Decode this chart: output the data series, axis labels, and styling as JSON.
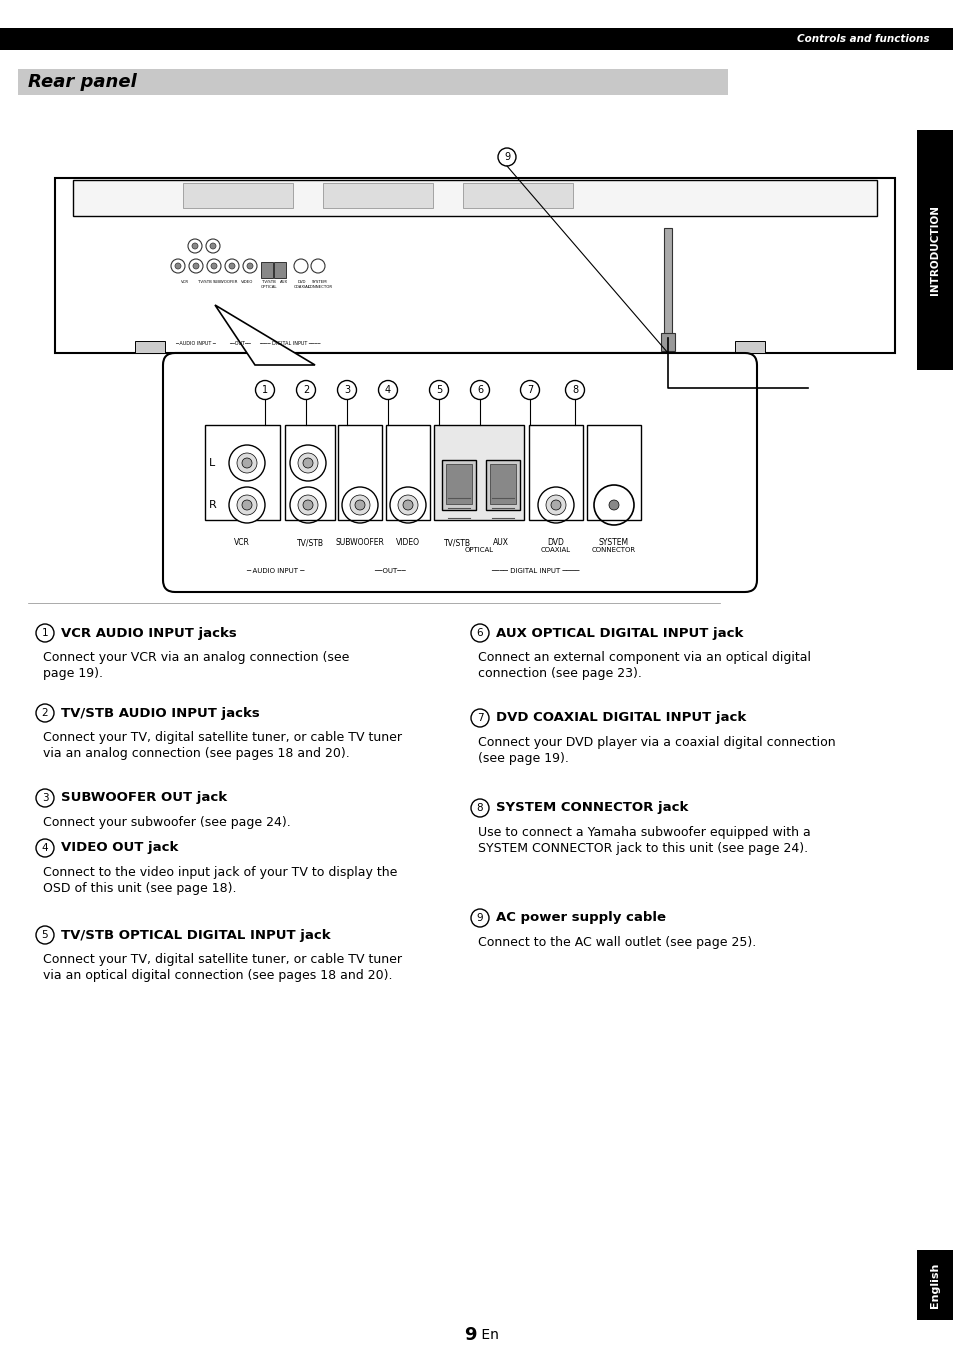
{
  "page_bg": "#ffffff",
  "header_bar_color": "#000000",
  "header_text": "Controls and functions",
  "header_text_color": "#ffffff",
  "section_bar_color": "#c8c8c8",
  "section_title": "Rear panel",
  "side_tab_color": "#000000",
  "side_tab_text": "INTRODUCTION",
  "side_tab_text_color": "#ffffff",
  "bottom_tab_color": "#000000",
  "bottom_tab_text": "English",
  "bottom_tab_text_color": "#ffffff",
  "page_number": "9",
  "page_suffix": " En",
  "items_left": [
    {
      "num": "1",
      "title": "VCR AUDIO INPUT jacks",
      "desc": "Connect your VCR via an analog connection (see\npage 19)."
    },
    {
      "num": "2",
      "title": "TV/STB AUDIO INPUT jacks",
      "desc": "Connect your TV, digital satellite tuner, or cable TV tuner\nvia an analog connection (see pages 18 and 20)."
    },
    {
      "num": "3",
      "title": "SUBWOOFER OUT jack",
      "desc": "Connect your subwoofer (see page 24)."
    },
    {
      "num": "4",
      "title": "VIDEO OUT jack",
      "desc": "Connect to the video input jack of your TV to display the\nOSD of this unit (see page 18)."
    },
    {
      "num": "5",
      "title": "TV/STB OPTICAL DIGITAL INPUT jack",
      "desc": "Connect your TV, digital satellite tuner, or cable TV tuner\nvia an optical digital connection (see pages 18 and 20)."
    }
  ],
  "items_right": [
    {
      "num": "6",
      "title": "AUX OPTICAL DIGITAL INPUT jack",
      "desc": "Connect an external component via an optical digital\nconnection (see page 23)."
    },
    {
      "num": "7",
      "title": "DVD COAXIAL DIGITAL INPUT jack",
      "desc": "Connect your DVD player via a coaxial digital connection\n(see page 19)."
    },
    {
      "num": "8",
      "title": "SYSTEM CONNECTOR jack",
      "desc": "Use to connect a Yamaha subwoofer equipped with a\nSYSTEM CONNECTOR jack to this unit (see page 24)."
    },
    {
      "num": "9",
      "title": "AC power supply cable",
      "desc": "Connect to the AC wall outlet (see page 25)."
    }
  ]
}
